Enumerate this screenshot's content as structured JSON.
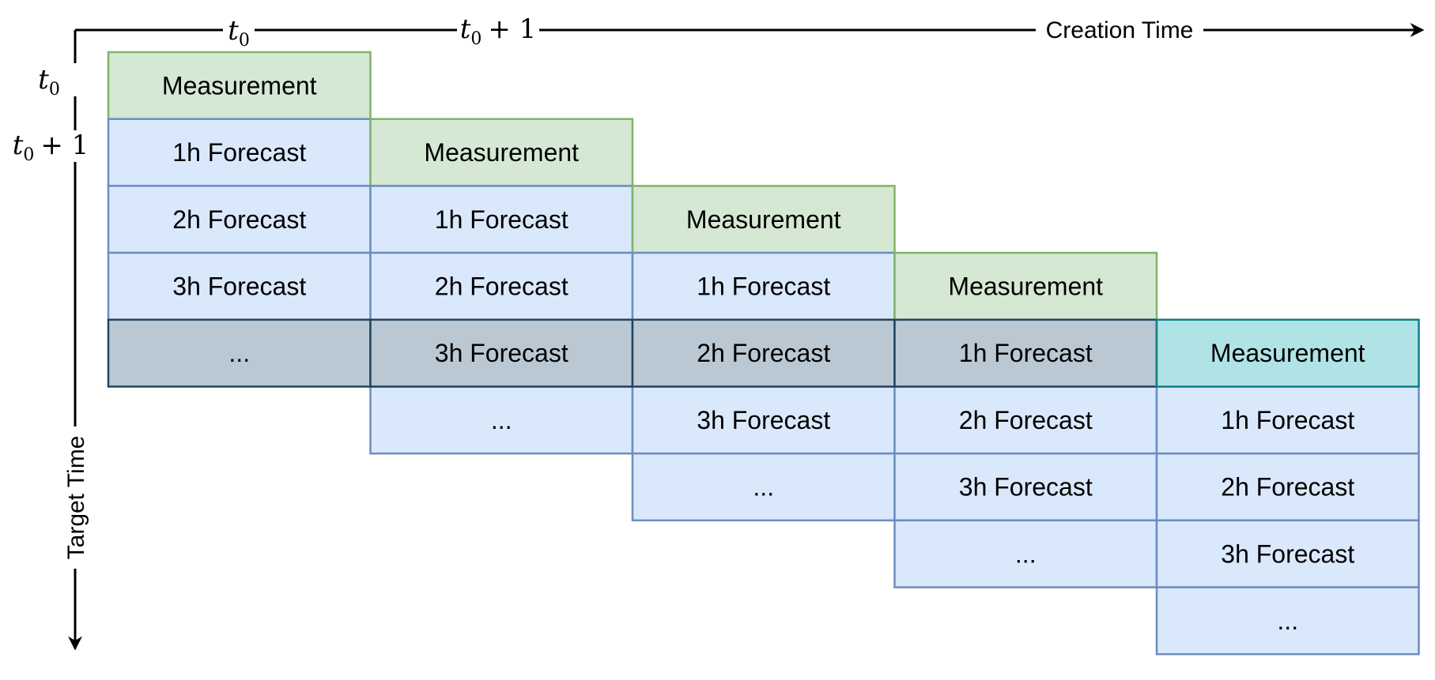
{
  "axes": {
    "creation_time_label": "Creation Time",
    "target_time_label": "Target Time",
    "creation_ticks": [
      {
        "var": "t",
        "sub": "0",
        "suffix": ""
      },
      {
        "var": "t",
        "sub": "0",
        "suffix": "+ 1"
      }
    ],
    "target_ticks": [
      {
        "var": "t",
        "sub": "0",
        "suffix": ""
      },
      {
        "var": "t",
        "sub": "0",
        "suffix": "+ 1"
      }
    ]
  },
  "colors": {
    "measurement_fill": "#d5e8d4",
    "measurement_stroke": "#82b366",
    "forecast_fill": "#dae8fc",
    "forecast_stroke": "#6c8ebf",
    "highlight_fill": "#bac8d3",
    "highlight_stroke": "#23445d",
    "highlight_measurement_fill": "#b0e3e6",
    "highlight_measurement_stroke": "#0e8088"
  },
  "columns": [
    {
      "cells": [
        {
          "label": "Measurement",
          "kind": "measurement"
        },
        {
          "label": "1h Forecast",
          "kind": "forecast"
        },
        {
          "label": "2h Forecast",
          "kind": "forecast"
        },
        {
          "label": "3h Forecast",
          "kind": "forecast"
        },
        {
          "label": "...",
          "kind": "highlight"
        }
      ]
    },
    {
      "cells": [
        {
          "label": "Measurement",
          "kind": "measurement"
        },
        {
          "label": "1h Forecast",
          "kind": "forecast"
        },
        {
          "label": "2h Forecast",
          "kind": "forecast"
        },
        {
          "label": "3h Forecast",
          "kind": "highlight"
        },
        {
          "label": "...",
          "kind": "forecast"
        }
      ]
    },
    {
      "cells": [
        {
          "label": "Measurement",
          "kind": "measurement"
        },
        {
          "label": "1h Forecast",
          "kind": "forecast"
        },
        {
          "label": "2h Forecast",
          "kind": "highlight"
        },
        {
          "label": "3h Forecast",
          "kind": "forecast"
        },
        {
          "label": "...",
          "kind": "forecast"
        }
      ]
    },
    {
      "cells": [
        {
          "label": "Measurement",
          "kind": "measurement"
        },
        {
          "label": "1h Forecast",
          "kind": "highlight"
        },
        {
          "label": "2h Forecast",
          "kind": "forecast"
        },
        {
          "label": "3h Forecast",
          "kind": "forecast"
        },
        {
          "label": "...",
          "kind": "forecast"
        }
      ]
    },
    {
      "cells": [
        {
          "label": "Measurement",
          "kind": "highlight_measurement"
        },
        {
          "label": "1h Forecast",
          "kind": "forecast"
        },
        {
          "label": "2h Forecast",
          "kind": "forecast"
        },
        {
          "label": "3h Forecast",
          "kind": "forecast"
        },
        {
          "label": "...",
          "kind": "forecast"
        }
      ]
    }
  ]
}
